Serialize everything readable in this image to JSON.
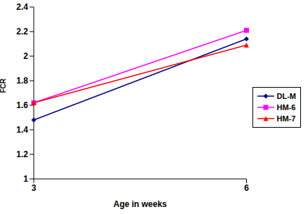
{
  "chart_data": {
    "type": "line",
    "x_label": "Age in weeks",
    "y_label": "FCR",
    "categories": [
      "3",
      "6"
    ],
    "series": [
      {
        "name": "DL-M",
        "color": "#000080",
        "marker": "diamond",
        "values": [
          1.48,
          2.14
        ]
      },
      {
        "name": "HM-6",
        "color": "#ff00ff",
        "marker": "square",
        "values": [
          1.62,
          2.21
        ]
      },
      {
        "name": "HM-7",
        "color": "#ff0000",
        "marker": "triangle",
        "values": [
          1.62,
          2.09
        ]
      }
    ],
    "ylim": [
      1,
      2.4
    ],
    "yticks": [
      1,
      1.2,
      1.4,
      1.6,
      1.8,
      2,
      2.2,
      2.4
    ],
    "grid": false,
    "legend": "right"
  }
}
